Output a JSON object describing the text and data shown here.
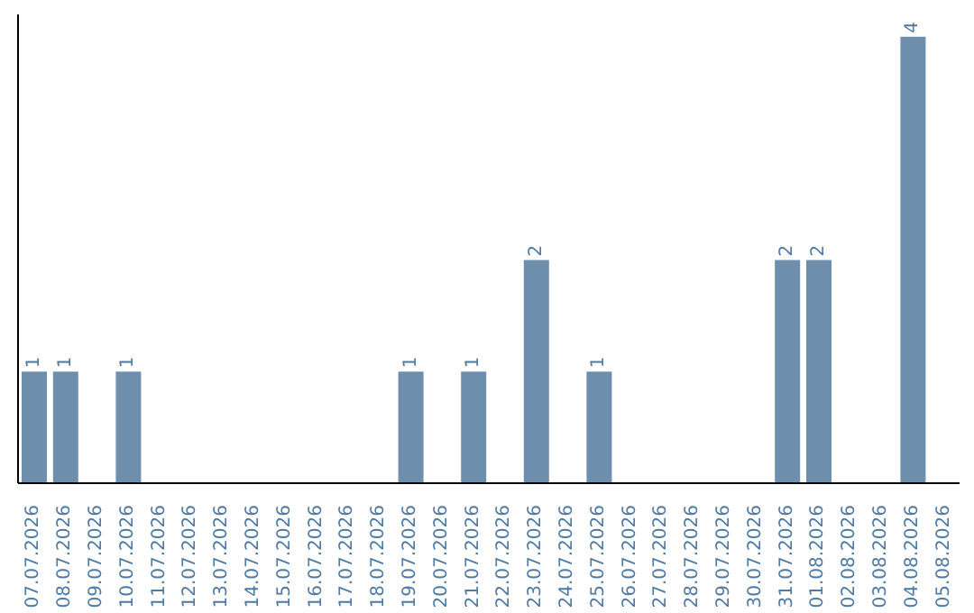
{
  "chart_data": {
    "type": "bar",
    "categories": [
      "07.07.2026",
      "08.07.2026",
      "09.07.2026",
      "10.07.2026",
      "11.07.2026",
      "12.07.2026",
      "13.07.2026",
      "14.07.2026",
      "15.07.2026",
      "16.07.2026",
      "17.07.2026",
      "18.07.2026",
      "19.07.2026",
      "20.07.2026",
      "21.07.2026",
      "22.07.2026",
      "23.07.2026",
      "24.07.2026",
      "25.07.2026",
      "26.07.2026",
      "27.07.2026",
      "28.07.2026",
      "29.07.2026",
      "30.07.2026",
      "31.07.2026",
      "01.08.2026",
      "02.08.2026",
      "03.08.2026",
      "04.08.2026",
      "05.08.2026"
    ],
    "values": [
      1,
      1,
      0,
      1,
      0,
      0,
      0,
      0,
      0,
      0,
      0,
      0,
      1,
      0,
      1,
      0,
      2,
      0,
      1,
      0,
      0,
      0,
      0,
      0,
      2,
      2,
      0,
      0,
      4,
      0
    ],
    "value_labels": [
      "1",
      "1",
      null,
      "1",
      null,
      null,
      null,
      null,
      null,
      null,
      null,
      null,
      "1",
      null,
      "1",
      null,
      "2",
      null,
      "1",
      null,
      null,
      null,
      null,
      null,
      "2",
      "2",
      null,
      null,
      "4",
      null
    ],
    "color": "#6d8fad",
    "grid": false,
    "legend": false
  }
}
